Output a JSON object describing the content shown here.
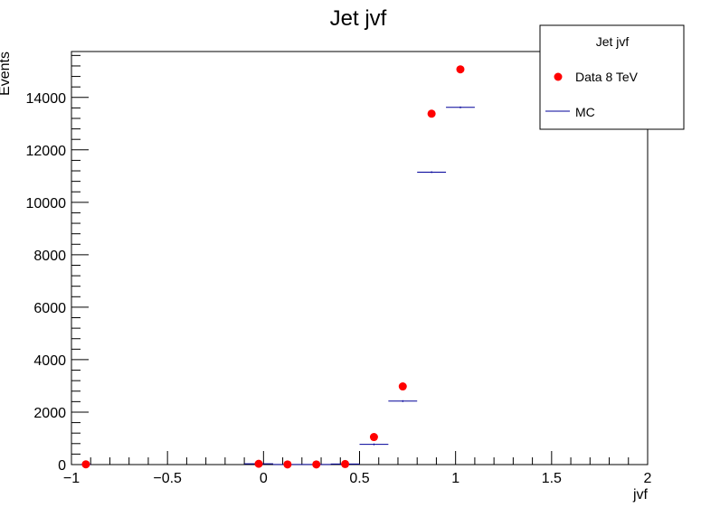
{
  "chart_data": {
    "type": "scatter",
    "title": "Jet jvf",
    "xlabel": "jvf",
    "ylabel": "Events",
    "xlim": [
      -1,
      2
    ],
    "ylim": [
      0,
      15750
    ],
    "x_ticks": [
      -1,
      -0.5,
      0,
      0.5,
      1,
      1.5,
      2
    ],
    "x_tick_labels": [
      "−1",
      "−0.5",
      "0",
      "0.5",
      "1",
      "1.5",
      "2"
    ],
    "y_ticks": [
      0,
      2000,
      4000,
      6000,
      8000,
      10000,
      12000,
      14000
    ],
    "y_tick_labels": [
      "0",
      "2000",
      "4000",
      "6000",
      "8000",
      "10000",
      "12000",
      "14000"
    ],
    "legend": {
      "title": "Jet jvf",
      "placement": "top-right",
      "entries": [
        "Data 8 TeV",
        "MC"
      ]
    },
    "series": [
      {
        "name": "Data 8 TeV",
        "style": "markers",
        "color": "#ff0000",
        "x": [
          -0.925,
          -0.025,
          0.125,
          0.275,
          0.425,
          0.575,
          0.725,
          0.875,
          1.025
        ],
        "values": [
          10,
          30,
          5,
          5,
          20,
          1050,
          2980,
          13380,
          15070
        ]
      },
      {
        "name": "MC",
        "style": "steps",
        "color": "#000099",
        "x_low": [
          -0.95,
          -0.1,
          0.05,
          0.2,
          0.35,
          0.5,
          0.65,
          0.8,
          0.95
        ],
        "x_high": [
          -0.9,
          0.05,
          0.2,
          0.35,
          0.5,
          0.65,
          0.8,
          0.95,
          1.1
        ],
        "values": [
          5,
          30,
          5,
          5,
          20,
          770,
          2420,
          11150,
          13620
        ]
      }
    ]
  }
}
